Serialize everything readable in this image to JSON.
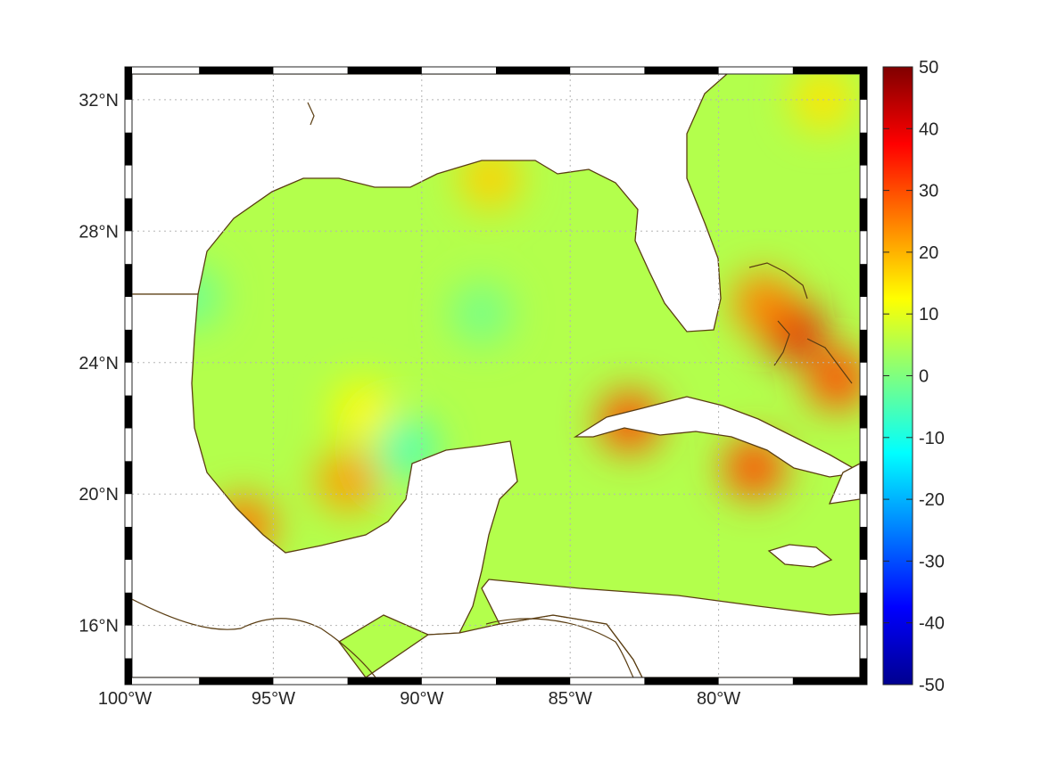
{
  "map": {
    "lon_range": [
      -100,
      -75
    ],
    "lat_range": [
      14.2,
      33
    ],
    "grid": true,
    "frame_style": "alternating black-white border",
    "coast_color": "#5a3d12",
    "lon_ticks": [
      {
        "value": -100,
        "label": "100°W"
      },
      {
        "value": -95,
        "label": "95°W"
      },
      {
        "value": -90,
        "label": "90°W"
      },
      {
        "value": -85,
        "label": "85°W"
      },
      {
        "value": -80,
        "label": "80°W"
      }
    ],
    "lat_ticks": [
      {
        "value": 32,
        "label": "32°N"
      },
      {
        "value": 28,
        "label": "28°N"
      },
      {
        "value": 24,
        "label": "24°N"
      },
      {
        "value": 20,
        "label": "20°N"
      },
      {
        "value": 16,
        "label": "16°N"
      }
    ]
  },
  "colorbar": {
    "colormap": "jet",
    "range": [
      -50,
      50
    ],
    "ticks": [
      {
        "value": 50,
        "label": "50"
      },
      {
        "value": 40,
        "label": "40"
      },
      {
        "value": 30,
        "label": "30"
      },
      {
        "value": 20,
        "label": "20"
      },
      {
        "value": 10,
        "label": "10"
      },
      {
        "value": 0,
        "label": "0"
      },
      {
        "value": -10,
        "label": "-10"
      },
      {
        "value": -20,
        "label": "-20"
      },
      {
        "value": -30,
        "label": "-30"
      },
      {
        "value": -40,
        "label": "-40"
      },
      {
        "value": -50,
        "label": "-50"
      }
    ]
  },
  "field": {
    "background_value": 5,
    "anomalies": [
      {
        "lon": -87.7,
        "lat": 29.6,
        "value": 17
      },
      {
        "lon": -92.5,
        "lat": 20.4,
        "value": 22
      },
      {
        "lon": -96.0,
        "lat": 19.0,
        "value": 26
      },
      {
        "lon": -92.0,
        "lat": 22.5,
        "value": 13
      },
      {
        "lon": -83.0,
        "lat": 22.2,
        "value": 30
      },
      {
        "lon": -78.8,
        "lat": 20.8,
        "value": 30
      },
      {
        "lon": -77.5,
        "lat": 25.0,
        "value": 40
      },
      {
        "lon": -76.0,
        "lat": 23.5,
        "value": 30
      },
      {
        "lon": -78.5,
        "lat": 25.8,
        "value": 25
      },
      {
        "lon": -76.5,
        "lat": 32.0,
        "value": 15
      },
      {
        "lon": -97.8,
        "lat": 26.0,
        "value": -2
      },
      {
        "lon": -88.0,
        "lat": 25.5,
        "value": -1
      },
      {
        "lon": -90.5,
        "lat": 21.4,
        "value": -5
      }
    ]
  }
}
